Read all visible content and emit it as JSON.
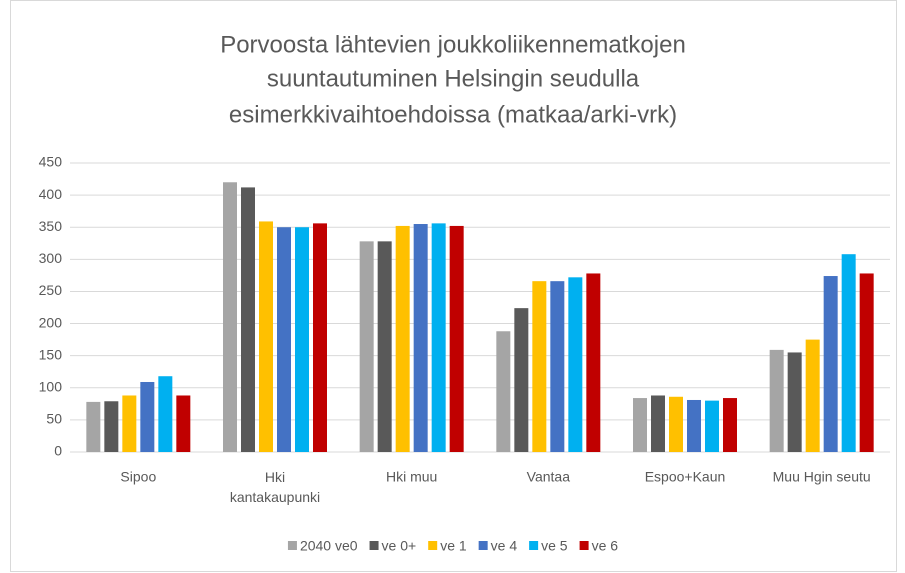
{
  "chart_data": {
    "type": "bar",
    "title": [
      "Porvoosta lähtevien joukkoliikennematkojen",
      "suuntautuminen Helsingin seudulla",
      "esimerkkivaihtoehdoissa (matkaa/arki-vrk)"
    ],
    "categories": [
      "Sipoo",
      "Hki kantakaupunki",
      "Hki muu",
      "Vantaa",
      "Espoo+Kaun",
      "Muu Hgin seutu"
    ],
    "series": [
      {
        "name": "2040 ve0",
        "color": "#a5a5a5",
        "values": [
          78,
          420,
          328,
          188,
          84,
          159
        ]
      },
      {
        "name": "ve 0+",
        "color": "#595959",
        "values": [
          79,
          412,
          328,
          224,
          88,
          155
        ]
      },
      {
        "name": "ve 1",
        "color": "#ffc000",
        "values": [
          88,
          359,
          352,
          266,
          86,
          175
        ]
      },
      {
        "name": "ve 4",
        "color": "#4472c4",
        "values": [
          109,
          350,
          355,
          266,
          81,
          274
        ]
      },
      {
        "name": "ve 5",
        "color": "#00b0f0",
        "values": [
          118,
          350,
          356,
          272,
          80,
          308
        ]
      },
      {
        "name": "ve 6",
        "color": "#c00000",
        "values": [
          88,
          356,
          352,
          278,
          84,
          278
        ]
      }
    ],
    "ylim": [
      0,
      450
    ],
    "yticks": [
      0,
      50,
      100,
      150,
      200,
      250,
      300,
      350,
      400,
      450
    ],
    "grid": true,
    "legend": "bottom"
  }
}
